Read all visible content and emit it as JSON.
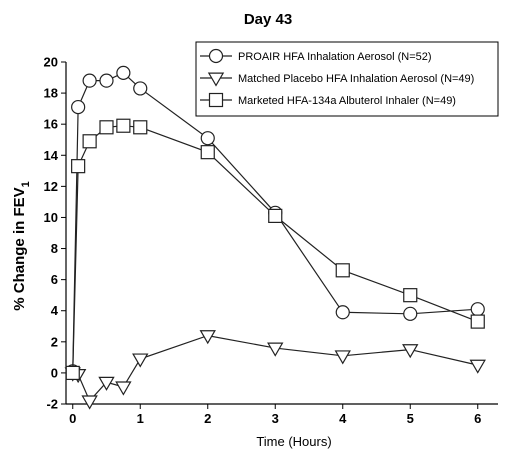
{
  "chart_data": {
    "type": "line",
    "title": "Day 43",
    "xlabel": "Time (Hours)",
    "ylabel_main": "% Change in FEV",
    "ylabel_sub": "1",
    "xlim": [
      -0.1,
      6.3
    ],
    "ylim": [
      -2,
      20
    ],
    "xticks": [
      0,
      1,
      2,
      3,
      4,
      5,
      6
    ],
    "yticks": [
      -2,
      0,
      2,
      4,
      6,
      8,
      10,
      12,
      14,
      16,
      18,
      20
    ],
    "grid": false,
    "legend_position": "top-right",
    "series": [
      {
        "name": "PROAIR HFA Inhalation Aerosol (N=52)",
        "marker": "circle",
        "x": [
          0,
          0.08,
          0.25,
          0.5,
          0.75,
          1,
          2,
          3,
          4,
          5,
          6
        ],
        "y": [
          0.1,
          17.1,
          18.8,
          18.8,
          19.3,
          18.3,
          15.1,
          10.3,
          3.9,
          3.8,
          4.1
        ]
      },
      {
        "name": "Matched Placebo HFA Inhalation Aerosol (N=49)",
        "marker": "triangle-down",
        "x": [
          0,
          0.08,
          0.25,
          0.5,
          0.75,
          1,
          2,
          3,
          4,
          5,
          6
        ],
        "y": [
          0.0,
          -0.1,
          -1.8,
          -0.6,
          -0.9,
          0.9,
          2.4,
          1.6,
          1.1,
          1.5,
          0.5
        ]
      },
      {
        "name": "Marketed HFA-134a Albuterol Inhaler (N=49)",
        "marker": "square",
        "x": [
          0,
          0.08,
          0.25,
          0.5,
          0.75,
          1,
          2,
          3,
          4,
          5,
          6
        ],
        "y": [
          0.0,
          13.3,
          14.9,
          15.8,
          15.9,
          15.8,
          14.2,
          10.1,
          6.6,
          5.0,
          3.3
        ]
      }
    ]
  }
}
